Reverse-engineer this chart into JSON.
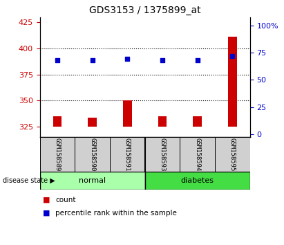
{
  "title": "GDS3153 / 1375899_at",
  "samples": [
    "GSM158589",
    "GSM158590",
    "GSM158591",
    "GSM158593",
    "GSM158594",
    "GSM158595"
  ],
  "bar_values": [
    335,
    334,
    350,
    335,
    335,
    411
  ],
  "bar_base": 325,
  "percentile_values": [
    68,
    68,
    69,
    68,
    68,
    72
  ],
  "ylim_left": [
    315,
    430
  ],
  "ylim_right": [
    -2.5,
    107.5
  ],
  "yticks_left": [
    325,
    350,
    375,
    400,
    425
  ],
  "yticks_right": [
    0,
    25,
    50,
    75,
    100
  ],
  "ytick_labels_right": [
    "0",
    "25",
    "50",
    "75",
    "100%"
  ],
  "grid_values": [
    350,
    375,
    400
  ],
  "bar_color": "#cc0000",
  "dot_color": "#0000cc",
  "normal_color": "#aaffaa",
  "diabetes_color": "#44dd44",
  "label_color_red": "#cc0000",
  "label_color_blue": "#0000cc",
  "background_color": "#ffffff",
  "tick_box_color": "#d0d0d0",
  "bar_width": 0.25
}
